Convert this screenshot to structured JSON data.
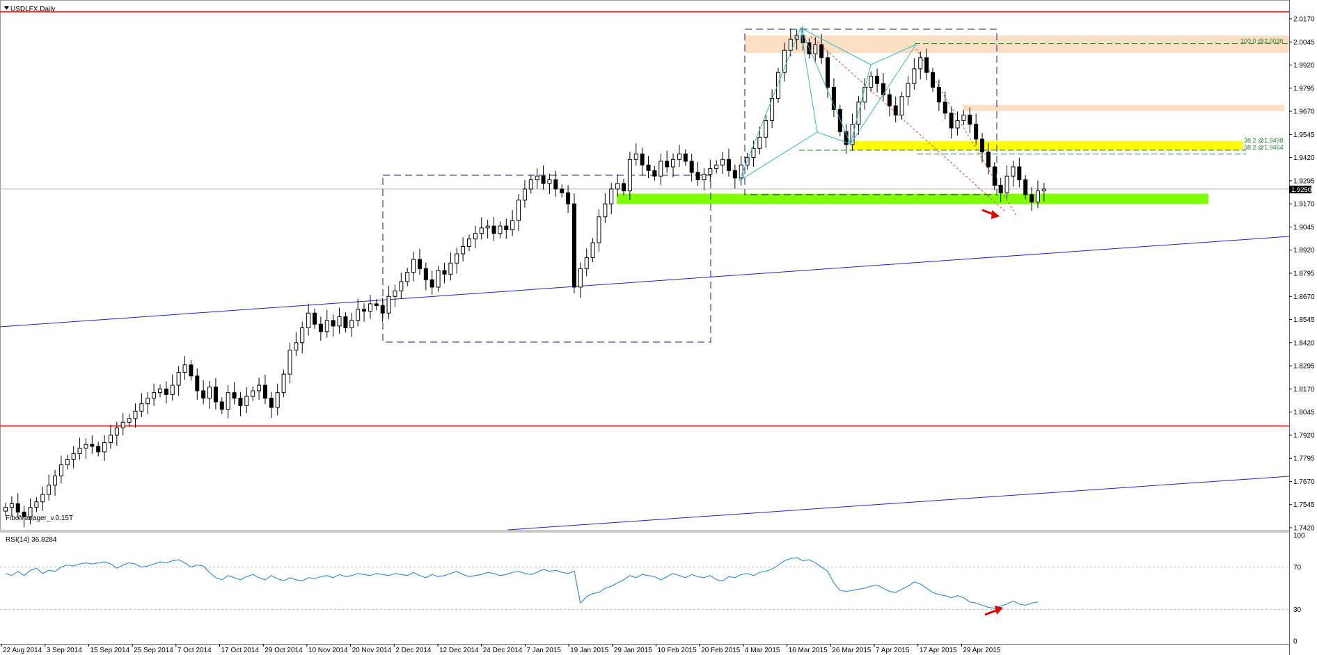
{
  "window": {
    "title": "USDLFX,Daily",
    "indicator_label": "FiboManager_v.0.15T",
    "menu_icon": "triangle-down-icon"
  },
  "chart_data": {
    "type": "candlestick",
    "symbol": "USDLFX",
    "timeframe": "Daily",
    "ylim": [
      1.737,
      2.0235
    ],
    "y_ticks": [
      "2.0170",
      "2.0045",
      "1.9920",
      "1.9795",
      "1.9670",
      "1.9545",
      "1.9420",
      "1.9295",
      "1.9170",
      "1.9045",
      "1.8920",
      "1.8795",
      "1.8670",
      "1.8545",
      "1.8420",
      "1.8295",
      "1.8170",
      "1.8045",
      "1.7920",
      "1.7795",
      "1.7670",
      "1.7545",
      "1.7420"
    ],
    "x_ticks": [
      "22 Aug 2014",
      "3 Sep 2014",
      "15 Sep 2014",
      "25 Sep 2014",
      "7 Oct 2014",
      "17 Oct 2014",
      "29 Oct 2014",
      "10 Nov 2014",
      "20 Nov 2014",
      "2 Dec 2014",
      "12 Dec 2014",
      "24 Dec 2014",
      "7 Jan 2015",
      "19 Jan 2015",
      "29 Jan 2015",
      "10 Feb 2015",
      "20 Feb 2015",
      "4 Mar 2015",
      "16 Mar 2015",
      "26 Mar 2015",
      "7 Apr 2015",
      "17 Apr 2015",
      "29 Apr 2015"
    ],
    "current_price": "1.9250",
    "closes": [
      1.753,
      1.755,
      1.7505,
      1.748,
      1.753,
      1.756,
      1.76,
      1.765,
      1.77,
      1.776,
      1.779,
      1.782,
      1.785,
      1.787,
      1.786,
      1.783,
      1.788,
      1.792,
      1.796,
      1.799,
      1.801,
      1.805,
      1.809,
      1.812,
      1.815,
      1.817,
      1.814,
      1.819,
      1.826,
      1.83,
      1.824,
      1.816,
      1.812,
      1.818,
      1.81,
      1.806,
      1.815,
      1.812,
      1.808,
      1.813,
      1.816,
      1.819,
      1.812,
      1.807,
      1.815,
      1.825,
      1.838,
      1.842,
      1.85,
      1.858,
      1.852,
      1.848,
      1.854,
      1.851,
      1.856,
      1.85,
      1.854,
      1.86,
      1.859,
      1.863,
      1.862,
      1.858,
      1.867,
      1.87,
      1.875,
      1.88,
      1.887,
      1.882,
      1.876,
      1.872,
      1.881,
      1.879,
      1.885,
      1.89,
      1.894,
      1.898,
      1.901,
      1.904,
      1.905,
      1.901,
      1.905,
      1.903,
      1.908,
      1.919,
      1.925,
      1.93,
      1.932,
      1.928,
      1.93,
      1.925,
      1.923,
      1.917,
      1.872,
      1.882,
      1.888,
      1.896,
      1.91,
      1.917,
      1.925,
      1.928,
      1.924,
      1.941,
      1.944,
      1.938,
      1.935,
      1.932,
      1.94,
      1.937,
      1.941,
      1.944,
      1.94,
      1.934,
      1.93,
      1.933,
      1.936,
      1.938,
      1.941,
      1.935,
      1.931,
      1.938,
      1.942,
      1.947,
      1.953,
      1.962,
      1.974,
      1.988,
      2.0,
      2.006,
      2.008,
      2.004,
      1.998,
      2.003,
      1.996,
      1.98,
      1.968,
      1.956,
      1.949,
      1.96,
      1.972,
      1.98,
      1.986,
      1.982,
      1.976,
      1.97,
      1.965,
      1.975,
      1.982,
      1.99,
      1.996,
      1.988,
      1.98,
      1.972,
      1.966,
      1.958,
      1.962,
      1.965,
      1.96,
      1.952,
      1.945,
      1.937,
      1.927,
      1.923,
      1.932,
      1.937,
      1.93,
      1.922,
      1.918,
      1.924,
      1.925
    ]
  },
  "levels": {
    "fib_100": "100.0   @2.0036",
    "fib_382_a": "38.2   @1.9498",
    "fib_382_b": "38.2   @1.9464"
  },
  "rsi": {
    "label": "RSI(14) 36.8284",
    "levels": [
      "100",
      "70",
      "30",
      "0"
    ],
    "values": [
      64,
      62,
      66,
      62,
      67,
      69,
      64,
      67,
      66,
      70,
      72,
      71,
      73,
      74,
      73,
      74,
      75,
      73,
      69,
      72,
      74,
      73,
      70,
      71,
      73,
      75,
      74,
      76,
      77,
      74,
      70,
      72,
      71,
      65,
      60,
      58,
      62,
      60,
      58,
      61,
      63,
      60,
      58,
      62,
      59,
      57,
      60,
      58,
      57,
      60,
      59,
      61,
      62,
      60,
      63,
      61,
      62,
      64,
      63,
      62,
      64,
      63,
      62,
      64,
      63,
      62,
      65,
      62,
      60,
      63,
      61,
      62,
      64,
      66,
      63,
      61,
      62,
      63,
      65,
      64,
      62,
      63,
      65,
      66,
      64,
      63,
      65,
      68,
      66,
      67,
      65,
      64,
      66,
      36,
      42,
      45,
      46,
      50,
      52,
      55,
      58,
      62,
      60,
      63,
      62,
      61,
      58,
      61,
      64,
      62,
      60,
      63,
      61,
      60,
      62,
      58,
      57,
      61,
      60,
      63,
      64,
      62,
      65,
      66,
      68,
      72,
      76,
      78,
      79,
      76,
      77,
      74,
      70,
      66,
      55,
      48,
      47,
      48,
      49,
      50,
      52,
      53,
      50,
      47,
      46,
      49,
      52,
      56,
      54,
      50,
      46,
      44,
      43,
      41,
      43,
      41,
      37,
      36,
      34,
      32,
      31,
      33,
      35,
      38,
      35,
      34,
      36,
      37
    ]
  },
  "colors": {
    "bull": "#ffffff",
    "bear": "#000000",
    "support_green": "#80ff00",
    "resistance_orange": "#fde0c4",
    "fib_yellow": "#ffff00",
    "trend_blue": "#2020c0",
    "horizontal_red": "#e00000",
    "rsi_line": "#3a8fd8",
    "harmonic_teal": "#38b8c8",
    "arrow_red": "#e00000"
  }
}
